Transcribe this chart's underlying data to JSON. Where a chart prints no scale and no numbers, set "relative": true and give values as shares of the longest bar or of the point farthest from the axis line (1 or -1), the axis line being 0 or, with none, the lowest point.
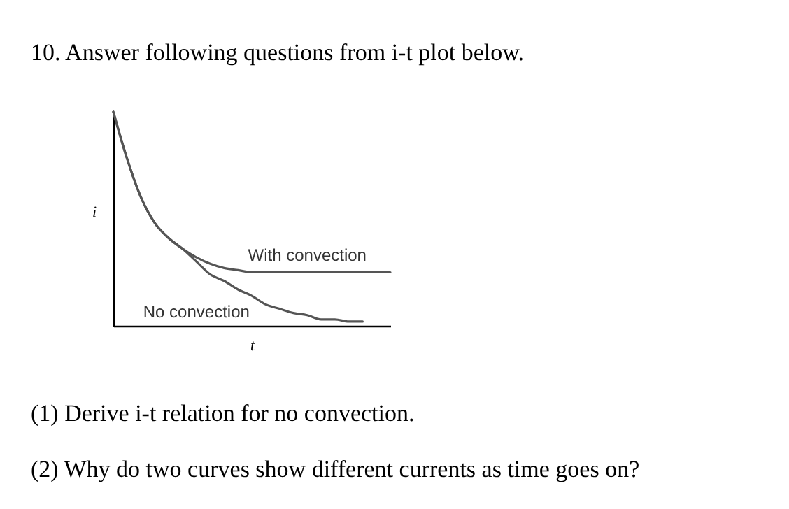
{
  "chart_data": {
    "type": "line",
    "relative": true,
    "title": "10. Answer following questions from i-t plot below.",
    "xlabel": "t",
    "ylabel": "i",
    "marker": "none",
    "line_style": "solid",
    "categories": [
      null,
      null,
      null,
      null,
      null,
      null,
      null,
      null,
      null,
      null,
      null,
      null,
      null,
      null,
      null,
      null,
      null,
      null,
      null,
      null,
      null
    ],
    "series": [
      {
        "name": "With convection",
        "color": "#555555",
        "values": [
          1.0,
          0.78,
          0.6,
          0.48,
          0.41,
          0.36,
          0.32,
          0.29,
          0.27,
          0.26,
          0.25,
          0.25,
          0.25,
          0.25,
          0.25,
          0.25,
          0.25,
          0.25,
          0.25,
          0.25,
          0.25
        ]
      },
      {
        "name": "No convection",
        "color": "#555555",
        "values": [
          1.0,
          0.78,
          0.6,
          0.48,
          0.41,
          0.36,
          0.3,
          0.24,
          0.21,
          0.17,
          0.14,
          0.1,
          0.08,
          0.06,
          0.05,
          0.03,
          0.03,
          0.02,
          0.02,
          null,
          null
        ]
      }
    ],
    "annotations": [
      "(1) Derive i-t relation for no convection.",
      "(2) Why do two curves show different currents as time goes on?"
    ]
  }
}
